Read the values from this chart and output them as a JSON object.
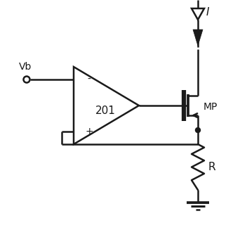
{
  "bg_color": "#ffffff",
  "line_color": "#1a1a1a",
  "line_width": 1.8,
  "fig_width": 3.52,
  "fig_height": 3.44,
  "dpi": 100,
  "vb_label": "Vb",
  "label_201": "201",
  "label_mp": "MP",
  "label_r": "R",
  "label_i": "I",
  "minus_label": "-",
  "plus_label": "+"
}
